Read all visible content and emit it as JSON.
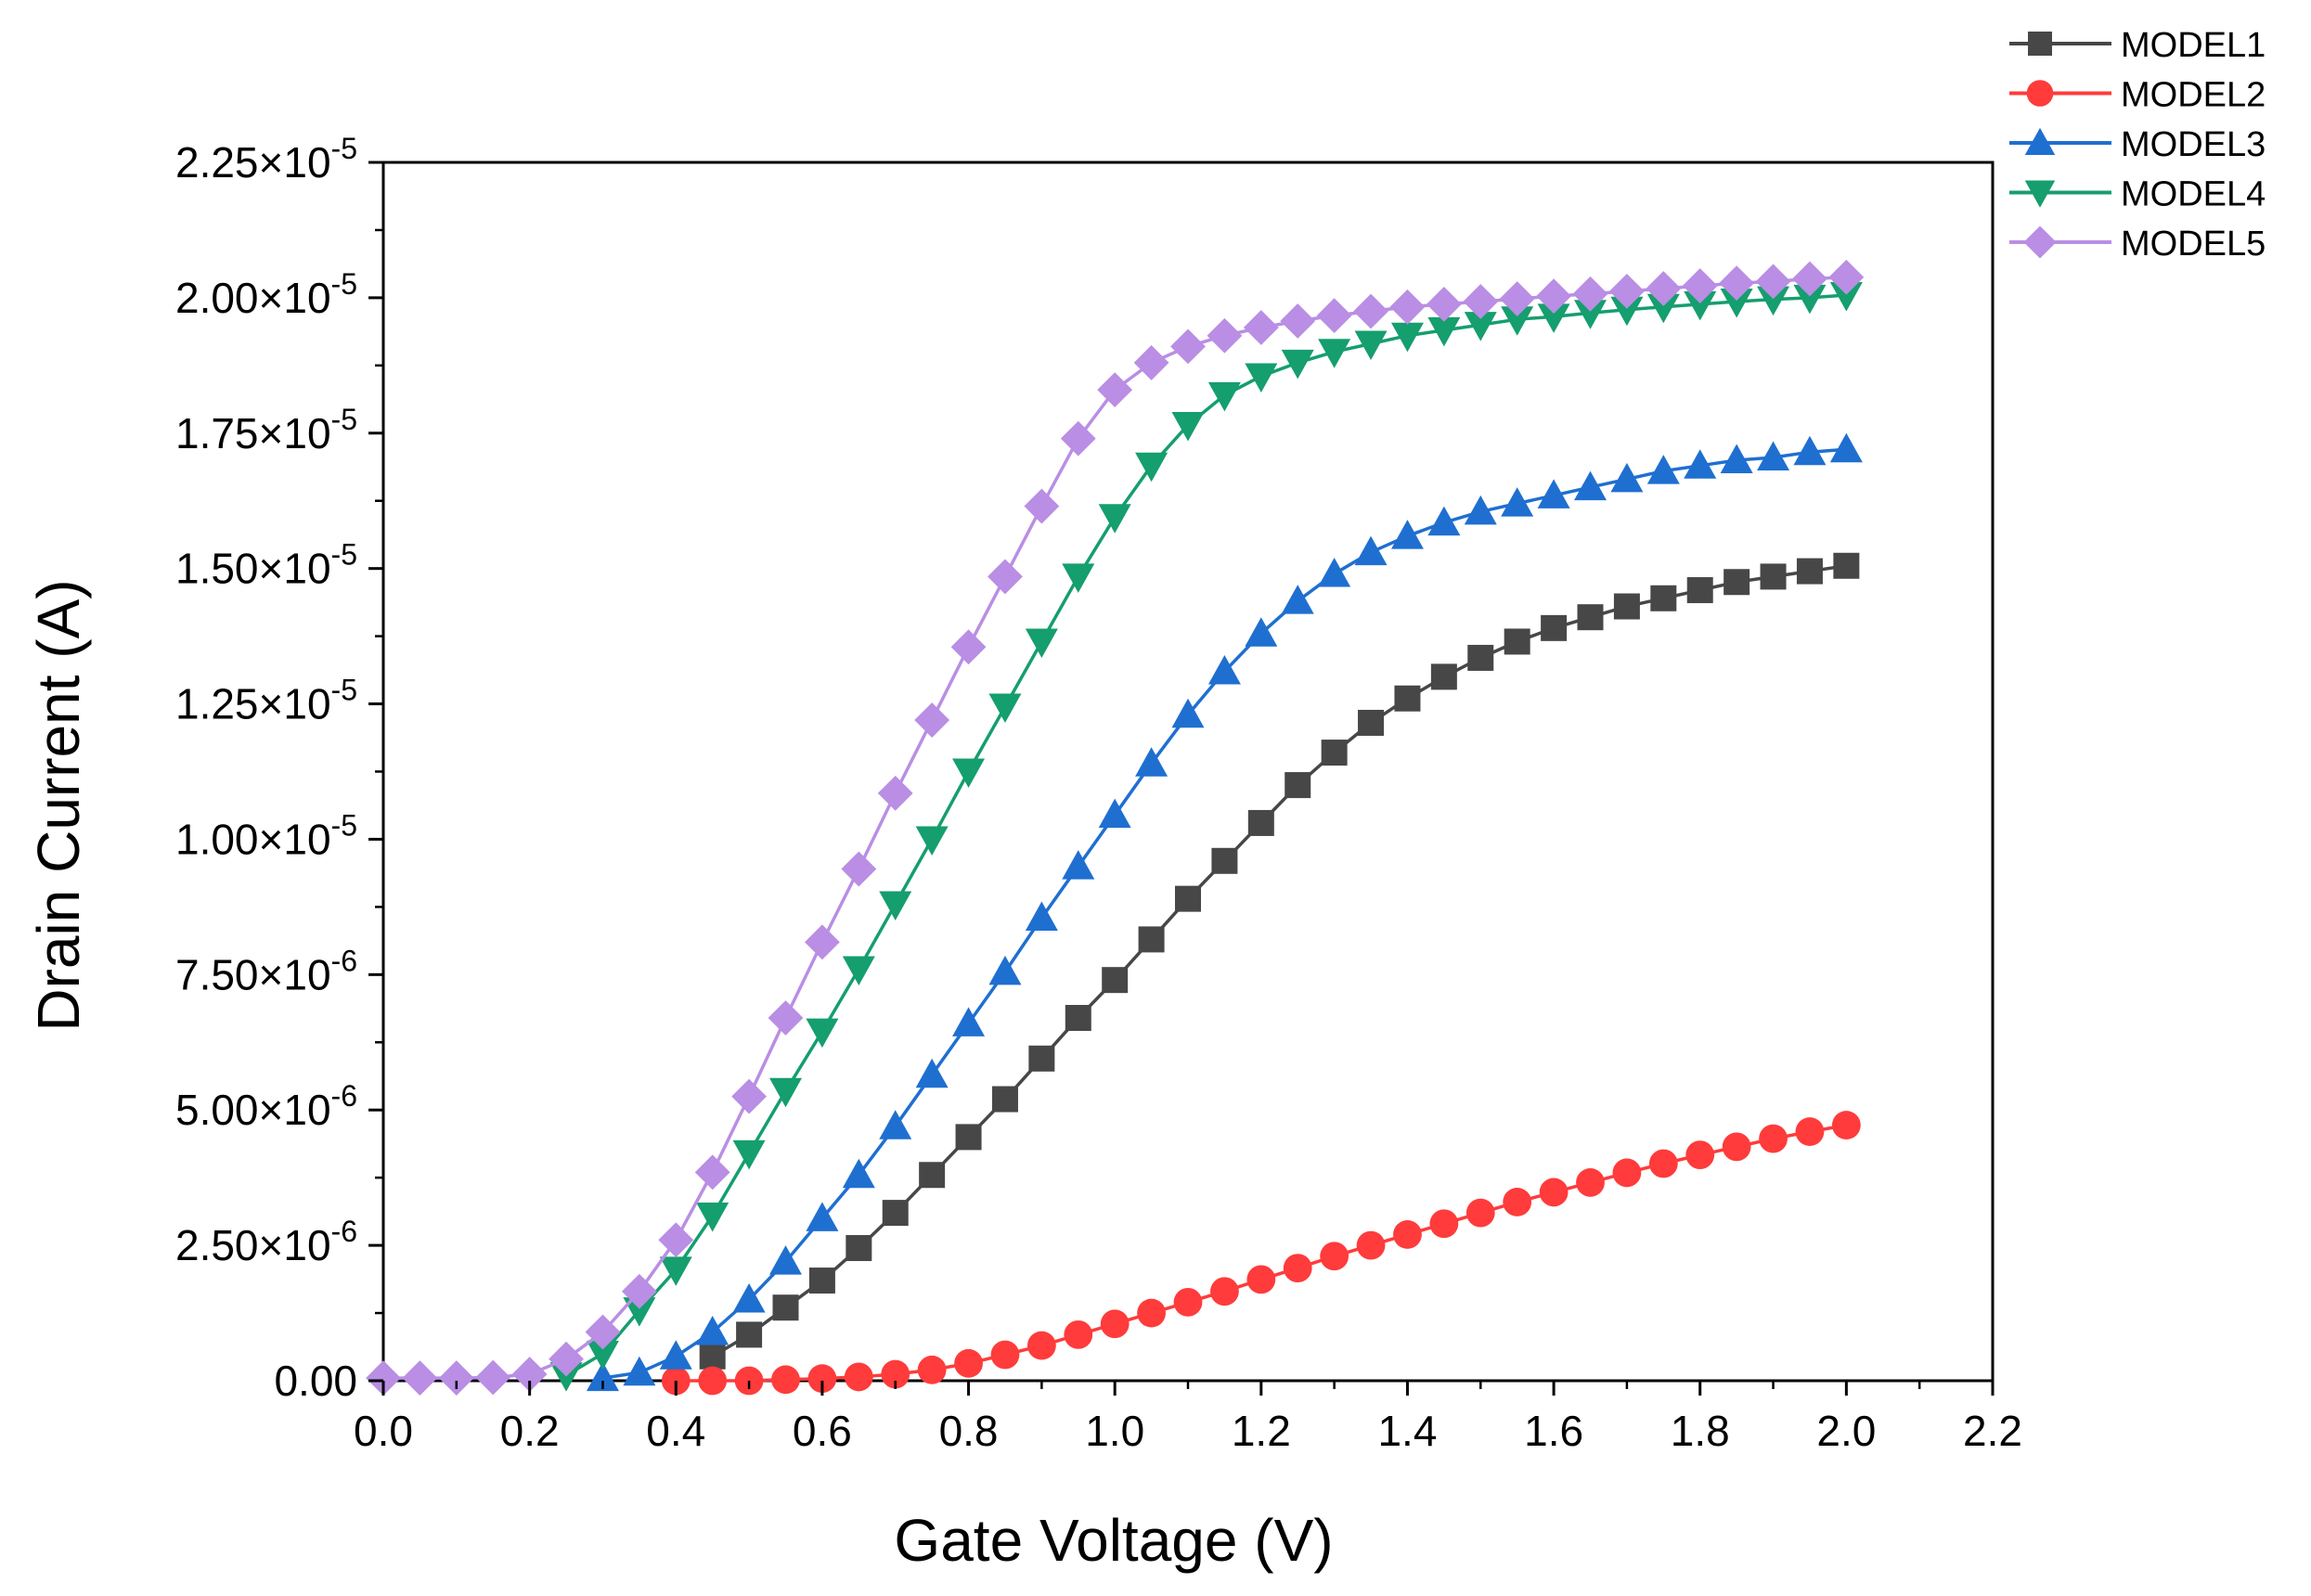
{
  "chart_data": {
    "type": "line",
    "title": "",
    "xlabel": "Gate Voltage (V)",
    "ylabel": "Drain Current (A)",
    "xlim": [
      0,
      2.2
    ],
    "ylim": [
      0,
      2.25e-05
    ],
    "grid": false,
    "legend_position": "top-right",
    "x_ticks": [
      {
        "value": 0.0,
        "label": "0.0"
      },
      {
        "value": 0.2,
        "label": "0.2"
      },
      {
        "value": 0.4,
        "label": "0.4"
      },
      {
        "value": 0.6,
        "label": "0.6"
      },
      {
        "value": 0.8,
        "label": "0.8"
      },
      {
        "value": 1.0,
        "label": "1.0"
      },
      {
        "value": 1.2,
        "label": "1.2"
      },
      {
        "value": 1.4,
        "label": "1.4"
      },
      {
        "value": 1.6,
        "label": "1.6"
      },
      {
        "value": 1.8,
        "label": "1.8"
      },
      {
        "value": 2.0,
        "label": "2.0"
      },
      {
        "value": 2.2,
        "label": "2.2"
      }
    ],
    "y_ticks": [
      {
        "value": 0,
        "mantissa": "0.00",
        "exp": ""
      },
      {
        "value": 2.5e-06,
        "mantissa": "2.50×10",
        "exp": "-6"
      },
      {
        "value": 5e-06,
        "mantissa": "5.00×10",
        "exp": "-6"
      },
      {
        "value": 7.5e-06,
        "mantissa": "7.50×10",
        "exp": "-6"
      },
      {
        "value": 1e-05,
        "mantissa": "1.00×10",
        "exp": "-5"
      },
      {
        "value": 1.25e-05,
        "mantissa": "1.25×10",
        "exp": "-5"
      },
      {
        "value": 1.5e-05,
        "mantissa": "1.50×10",
        "exp": "-5"
      },
      {
        "value": 1.75e-05,
        "mantissa": "1.75×10",
        "exp": "-5"
      },
      {
        "value": 2e-05,
        "mantissa": "2.00×10",
        "exp": "-5"
      },
      {
        "value": 2.25e-05,
        "mantissa": "2.25×10",
        "exp": "-5"
      }
    ],
    "x": [
      0,
      0.05,
      0.1,
      0.15,
      0.2,
      0.25,
      0.3,
      0.35,
      0.4,
      0.45,
      0.5,
      0.55,
      0.6,
      0.65,
      0.7,
      0.75,
      0.8,
      0.85,
      0.9,
      0.95,
      1.0,
      1.05,
      1.1,
      1.15,
      1.2,
      1.25,
      1.3,
      1.35,
      1.4,
      1.45,
      1.5,
      1.55,
      1.6,
      1.65,
      1.7,
      1.75,
      1.8,
      1.85,
      1.9,
      1.95,
      2.0
    ],
    "series": [
      {
        "name": "MODEL1",
        "color": "#474747",
        "marker": "square",
        "x": [
          0.45,
          0.5,
          0.55,
          0.6,
          0.65,
          0.7,
          0.75,
          0.8,
          0.85,
          0.9,
          0.95,
          1.0,
          1.05,
          1.1,
          1.15,
          1.2,
          1.25,
          1.3,
          1.35,
          1.4,
          1.45,
          1.5,
          1.55,
          1.6,
          1.65,
          1.7,
          1.75,
          1.8,
          1.85,
          1.9,
          1.95,
          2.0
        ],
        "values": [
          4.5e-07,
          8.5e-07,
          1.35e-06,
          1.85e-06,
          2.45e-06,
          3.1e-06,
          3.8e-06,
          4.5e-06,
          5.2e-06,
          5.95e-06,
          6.7e-06,
          7.4e-06,
          8.15e-06,
          8.9e-06,
          9.6e-06,
          1.03e-05,
          1.1e-05,
          1.16e-05,
          1.215e-05,
          1.26e-05,
          1.3e-05,
          1.335e-05,
          1.365e-05,
          1.39e-05,
          1.41e-05,
          1.43e-05,
          1.445e-05,
          1.46e-05,
          1.475e-05,
          1.485e-05,
          1.495e-05,
          1.505e-05
        ]
      },
      {
        "name": "MODEL2",
        "color": "#ff3b3b",
        "marker": "circle",
        "x": [
          0.4,
          0.45,
          0.5,
          0.55,
          0.6,
          0.65,
          0.7,
          0.75,
          0.8,
          0.85,
          0.9,
          0.95,
          1.0,
          1.05,
          1.1,
          1.15,
          1.2,
          1.25,
          1.3,
          1.35,
          1.4,
          1.45,
          1.5,
          1.55,
          1.6,
          1.65,
          1.7,
          1.75,
          1.8,
          1.85,
          1.9,
          1.95,
          2.0
        ],
        "values": [
          0.0,
          0.0,
          0.0,
          2e-08,
          4e-08,
          7e-08,
          1.2e-07,
          2e-07,
          3.2e-07,
          4.8e-07,
          6.5e-07,
          8.5e-07,
          1.05e-06,
          1.25e-06,
          1.45e-06,
          1.65e-06,
          1.87e-06,
          2.08e-06,
          2.3e-06,
          2.5e-06,
          2.7e-06,
          2.9e-06,
          3.1e-06,
          3.3e-06,
          3.48e-06,
          3.66e-06,
          3.84e-06,
          4.01e-06,
          4.17e-06,
          4.32e-06,
          4.47e-06,
          4.6e-06,
          4.72e-06
        ]
      },
      {
        "name": "MODEL3",
        "color": "#1f6fd1",
        "marker": "triangle-up",
        "x": [
          0.3,
          0.35,
          0.4,
          0.45,
          0.5,
          0.55,
          0.6,
          0.65,
          0.7,
          0.75,
          0.8,
          0.85,
          0.9,
          0.95,
          1.0,
          1.05,
          1.1,
          1.15,
          1.2,
          1.25,
          1.3,
          1.35,
          1.4,
          1.45,
          1.5,
          1.55,
          1.6,
          1.65,
          1.7,
          1.75,
          1.8,
          1.85,
          1.9,
          1.95,
          2.0
        ],
        "values": [
          5e-08,
          1.5e-07,
          4.5e-07,
          9e-07,
          1.5e-06,
          2.2e-06,
          3e-06,
          3.8e-06,
          4.7e-06,
          5.65e-06,
          6.6e-06,
          7.55e-06,
          8.55e-06,
          9.5e-06,
          1.045e-05,
          1.14e-05,
          1.23e-05,
          1.31e-05,
          1.38e-05,
          1.44e-05,
          1.49e-05,
          1.53e-05,
          1.56e-05,
          1.585e-05,
          1.605e-05,
          1.62e-05,
          1.635e-05,
          1.65e-05,
          1.665e-05,
          1.68e-05,
          1.69e-05,
          1.7e-05,
          1.705e-05,
          1.715e-05,
          1.72e-05
        ]
      },
      {
        "name": "MODEL4",
        "color": "#159e6e",
        "marker": "triangle-down",
        "x": [
          0.25,
          0.3,
          0.35,
          0.4,
          0.45,
          0.5,
          0.55,
          0.6,
          0.65,
          0.7,
          0.75,
          0.8,
          0.85,
          0.9,
          0.95,
          1.0,
          1.05,
          1.1,
          1.15,
          1.2,
          1.25,
          1.3,
          1.35,
          1.4,
          1.45,
          1.5,
          1.55,
          1.6,
          1.65,
          1.7,
          1.75,
          1.8,
          1.85,
          1.9,
          1.95,
          2.0
        ],
        "values": [
          1e-07,
          5e-07,
          1.3e-06,
          2.05e-06,
          3.05e-06,
          4.2e-06,
          5.35e-06,
          6.45e-06,
          7.6e-06,
          8.8e-06,
          1e-05,
          1.125e-05,
          1.245e-05,
          1.365e-05,
          1.485e-05,
          1.595e-05,
          1.69e-05,
          1.765e-05,
          1.82e-05,
          1.855e-05,
          1.88e-05,
          1.9e-05,
          1.915e-05,
          1.93e-05,
          1.94e-05,
          1.95e-05,
          1.96e-05,
          1.965e-05,
          1.972e-05,
          1.978e-05,
          1.983e-05,
          1.988e-05,
          1.993e-05,
          1.997e-05,
          2e-05,
          2.005e-05
        ]
      },
      {
        "name": "MODEL5",
        "color": "#b98ee4",
        "marker": "diamond",
        "x": [
          0,
          0.05,
          0.1,
          0.15,
          0.2,
          0.25,
          0.3,
          0.35,
          0.4,
          0.45,
          0.5,
          0.55,
          0.6,
          0.65,
          0.7,
          0.75,
          0.8,
          0.85,
          0.9,
          0.95,
          1.0,
          1.05,
          1.1,
          1.15,
          1.2,
          1.25,
          1.3,
          1.35,
          1.4,
          1.45,
          1.5,
          1.55,
          1.6,
          1.65,
          1.7,
          1.75,
          1.8,
          1.85,
          1.9,
          1.95,
          2.0
        ],
        "values": [
          5e-08,
          5e-08,
          5e-08,
          6e-08,
          1.2e-07,
          4e-07,
          9e-07,
          1.65e-06,
          2.6e-06,
          3.85e-06,
          5.25e-06,
          6.7e-06,
          8.1e-06,
          9.45e-06,
          1.085e-05,
          1.22e-05,
          1.355e-05,
          1.485e-05,
          1.615e-05,
          1.74e-05,
          1.83e-05,
          1.88e-05,
          1.91e-05,
          1.93e-05,
          1.945e-05,
          1.957e-05,
          1.967e-05,
          1.975e-05,
          1.983e-05,
          1.988e-05,
          1.993e-05,
          1.998e-05,
          2.003e-05,
          2.007e-05,
          2.012e-05,
          2.017e-05,
          2.022e-05,
          2.027e-05,
          2.03e-05,
          2.035e-05,
          2.038e-05
        ]
      }
    ]
  }
}
